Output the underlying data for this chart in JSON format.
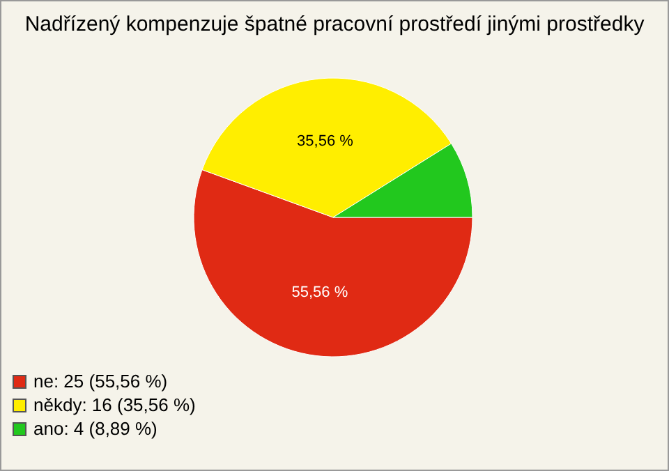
{
  "chart_data": {
    "type": "pie",
    "title": "Nadřízený kompenzuje špatné pracovní prostředí jinými prostředky",
    "categories": [
      "ne: 25 (55,56 %)",
      "někdy: 16 (35,56 %)",
      "ano: 4 (8,89 %)"
    ],
    "values": [
      55.56,
      35.56,
      8.89
    ],
    "colors": [
      "#e02a14",
      "#ffee00",
      "#22c81e"
    ],
    "value_labels": [
      "55,56 %",
      "35,56 %",
      null
    ],
    "legend": "bottom left"
  }
}
